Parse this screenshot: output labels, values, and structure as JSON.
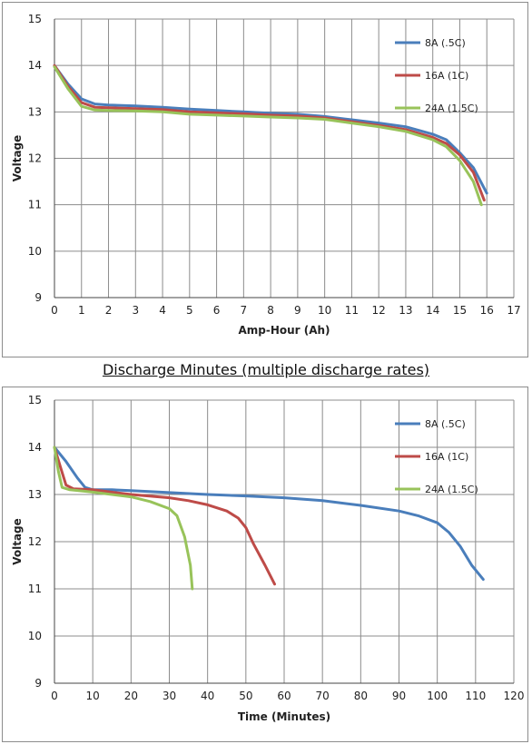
{
  "caption": "Discharge Minutes (multiple discharge rates)",
  "colors": {
    "s1": "#4a7ebb",
    "s2": "#be4b48",
    "s3": "#98c35a",
    "grid": "#8c8c8c"
  },
  "chart_data": [
    {
      "type": "line",
      "title": "",
      "xlabel": "Amp-Hour (Ah)",
      "ylabel": "Voltage",
      "xlim": [
        0,
        17
      ],
      "ylim": [
        9,
        15
      ],
      "xticks": [
        0,
        1,
        2,
        3,
        4,
        5,
        6,
        7,
        8,
        9,
        10,
        11,
        12,
        13,
        14,
        15,
        16,
        17
      ],
      "yticks": [
        9,
        10,
        11,
        12,
        13,
        14,
        15
      ],
      "grid": true,
      "legend": "top-right",
      "series": [
        {
          "name": "8A (.5C)",
          "color": "#4a7ebb",
          "points": [
            [
              0,
              14
            ],
            [
              0.5,
              13.6
            ],
            [
              1,
              13.28
            ],
            [
              1.5,
              13.17
            ],
            [
              2,
              13.15
            ],
            [
              3,
              13.13
            ],
            [
              4,
              13.1
            ],
            [
              5,
              13.06
            ],
            [
              6,
              13.03
            ],
            [
              7,
              13.0
            ],
            [
              8,
              12.97
            ],
            [
              9,
              12.95
            ],
            [
              10,
              12.9
            ],
            [
              11,
              12.83
            ],
            [
              12,
              12.76
            ],
            [
              13,
              12.68
            ],
            [
              14,
              12.52
            ],
            [
              14.5,
              12.4
            ],
            [
              15,
              12.12
            ],
            [
              15.5,
              11.8
            ],
            [
              16,
              11.25
            ]
          ]
        },
        {
          "name": "16A (1C)",
          "color": "#be4b48",
          "points": [
            [
              0,
              14
            ],
            [
              0.5,
              13.55
            ],
            [
              1,
              13.2
            ],
            [
              1.5,
              13.1
            ],
            [
              2,
              13.09
            ],
            [
              3,
              13.07
            ],
            [
              4,
              13.05
            ],
            [
              5,
              13.0
            ],
            [
              6,
              12.98
            ],
            [
              7,
              12.96
            ],
            [
              8,
              12.93
            ],
            [
              9,
              12.91
            ],
            [
              10,
              12.87
            ],
            [
              11,
              12.79
            ],
            [
              12,
              12.71
            ],
            [
              13,
              12.62
            ],
            [
              14,
              12.45
            ],
            [
              14.5,
              12.32
            ],
            [
              15,
              12.07
            ],
            [
              15.5,
              11.7
            ],
            [
              15.9,
              11.1
            ]
          ]
        },
        {
          "name": "24A (1.5C)",
          "color": "#98c35a",
          "points": [
            [
              0,
              13.97
            ],
            [
              0.5,
              13.5
            ],
            [
              1,
              13.12
            ],
            [
              1.5,
              13.04
            ],
            [
              2,
              13.03
            ],
            [
              3,
              13.02
            ],
            [
              4,
              13.0
            ],
            [
              5,
              12.95
            ],
            [
              6,
              12.93
            ],
            [
              7,
              12.91
            ],
            [
              8,
              12.89
            ],
            [
              9,
              12.87
            ],
            [
              10,
              12.84
            ],
            [
              11,
              12.76
            ],
            [
              12,
              12.68
            ],
            [
              13,
              12.58
            ],
            [
              14,
              12.4
            ],
            [
              14.5,
              12.25
            ],
            [
              15,
              11.95
            ],
            [
              15.5,
              11.5
            ],
            [
              15.8,
              11.0
            ]
          ]
        }
      ]
    },
    {
      "type": "line",
      "title": "",
      "xlabel": "Time (Minutes)",
      "ylabel": "Voltage",
      "xlim": [
        0,
        120
      ],
      "ylim": [
        9,
        15
      ],
      "xticks": [
        0,
        10,
        20,
        30,
        40,
        50,
        60,
        70,
        80,
        90,
        100,
        110,
        120
      ],
      "yticks": [
        9,
        10,
        11,
        12,
        13,
        14,
        15
      ],
      "grid": true,
      "legend": "top-right",
      "series": [
        {
          "name": "8A (.5C)",
          "color": "#4a7ebb",
          "points": [
            [
              0,
              14
            ],
            [
              3,
              13.7
            ],
            [
              6,
              13.35
            ],
            [
              8,
              13.15
            ],
            [
              10,
              13.1
            ],
            [
              15,
              13.1
            ],
            [
              20,
              13.08
            ],
            [
              30,
              13.04
            ],
            [
              40,
              13.0
            ],
            [
              50,
              12.97
            ],
            [
              60,
              12.93
            ],
            [
              70,
              12.87
            ],
            [
              80,
              12.77
            ],
            [
              90,
              12.65
            ],
            [
              95,
              12.55
            ],
            [
              100,
              12.4
            ],
            [
              103,
              12.2
            ],
            [
              106,
              11.9
            ],
            [
              109,
              11.5
            ],
            [
              112,
              11.2
            ]
          ]
        },
        {
          "name": "16A (1C)",
          "color": "#be4b48",
          "points": [
            [
              0,
              14
            ],
            [
              1.5,
              13.6
            ],
            [
              3,
              13.2
            ],
            [
              5,
              13.12
            ],
            [
              10,
              13.1
            ],
            [
              20,
              13.0
            ],
            [
              30,
              12.93
            ],
            [
              35,
              12.87
            ],
            [
              40,
              12.78
            ],
            [
              45,
              12.65
            ],
            [
              48,
              12.5
            ],
            [
              50,
              12.3
            ],
            [
              52,
              11.95
            ],
            [
              55,
              11.5
            ],
            [
              57.5,
              11.1
            ]
          ]
        },
        {
          "name": "24A (1.5C)",
          "color": "#98c35a",
          "points": [
            [
              0,
              14
            ],
            [
              1,
              13.5
            ],
            [
              2,
              13.15
            ],
            [
              4,
              13.1
            ],
            [
              10,
              13.05
            ],
            [
              20,
              12.95
            ],
            [
              25,
              12.85
            ],
            [
              30,
              12.7
            ],
            [
              32,
              12.55
            ],
            [
              34,
              12.1
            ],
            [
              35.5,
              11.5
            ],
            [
              36,
              11.0
            ]
          ]
        }
      ]
    }
  ]
}
